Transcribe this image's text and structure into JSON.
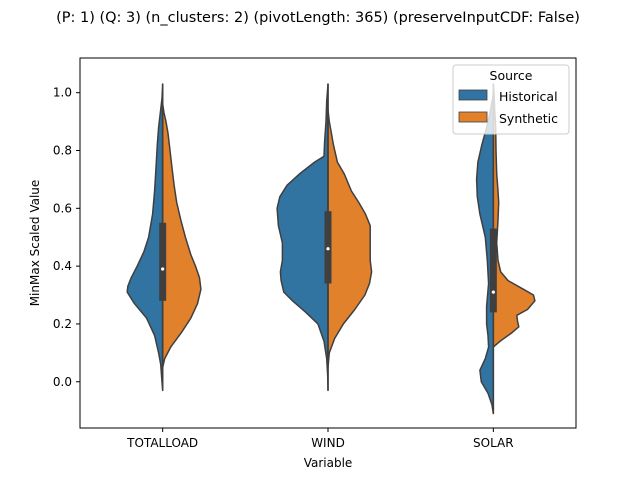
{
  "chart_data": {
    "type": "violin",
    "title": "(P: 1) (Q: 3) (n_clusters: 2) (pivotLength: 365) (preserveInputCDF: False)",
    "xlabel": "Variable",
    "ylabel": "MinMax Scaled Value",
    "categories": [
      "TOTALLOAD",
      "WIND",
      "SOLAR"
    ],
    "ylim": [
      -0.16,
      1.12
    ],
    "yticks": [
      "0.0",
      "0.2",
      "0.4",
      "0.6",
      "0.8",
      "1.0"
    ],
    "grid": false,
    "legend": {
      "title": "Source",
      "position": "top-right"
    },
    "split": true,
    "series": [
      {
        "name": "Historical",
        "color": "#3274a1",
        "side": "left",
        "violins": [
          {
            "category": "TOTALLOAD",
            "profile": [
              [
                -0.03,
                0
              ],
              [
                0.0,
                0.01
              ],
              [
                0.06,
                0.03
              ],
              [
                0.1,
                0.06
              ],
              [
                0.16,
                0.12
              ],
              [
                0.22,
                0.24
              ],
              [
                0.27,
                0.42
              ],
              [
                0.31,
                0.53
              ],
              [
                0.33,
                0.52
              ],
              [
                0.36,
                0.47
              ],
              [
                0.4,
                0.38
              ],
              [
                0.45,
                0.28
              ],
              [
                0.5,
                0.21
              ],
              [
                0.58,
                0.15
              ],
              [
                0.66,
                0.12
              ],
              [
                0.74,
                0.1
              ],
              [
                0.82,
                0.08
              ],
              [
                0.88,
                0.06
              ],
              [
                0.93,
                0.035
              ],
              [
                0.98,
                0.01
              ],
              [
                1.03,
                0
              ]
            ]
          },
          {
            "category": "WIND",
            "profile": [
              [
                -0.03,
                0
              ],
              [
                0.02,
                0.005
              ],
              [
                0.08,
                0.02
              ],
              [
                0.14,
                0.06
              ],
              [
                0.2,
                0.15
              ],
              [
                0.24,
                0.33
              ],
              [
                0.28,
                0.53
              ],
              [
                0.31,
                0.66
              ],
              [
                0.35,
                0.7
              ],
              [
                0.38,
                0.71
              ],
              [
                0.42,
                0.68
              ],
              [
                0.48,
                0.68
              ],
              [
                0.54,
                0.74
              ],
              [
                0.6,
                0.76
              ],
              [
                0.64,
                0.72
              ],
              [
                0.68,
                0.61
              ],
              [
                0.72,
                0.42
              ],
              [
                0.76,
                0.2
              ],
              [
                0.78,
                0.06
              ],
              [
                0.83,
                0.05
              ],
              [
                0.9,
                0.03
              ],
              [
                0.97,
                0.02
              ],
              [
                1.03,
                0
              ]
            ]
          },
          {
            "category": "SOLAR",
            "profile": [
              [
                -0.11,
                0
              ],
              [
                -0.08,
                0.02
              ],
              [
                -0.04,
                0.08
              ],
              [
                0.0,
                0.18
              ],
              [
                0.04,
                0.2
              ],
              [
                0.08,
                0.12
              ],
              [
                0.12,
                0.07
              ],
              [
                0.16,
                0.08
              ],
              [
                0.2,
                0.1
              ],
              [
                0.26,
                0.1
              ],
              [
                0.34,
                0.07
              ],
              [
                0.42,
                0.09
              ],
              [
                0.5,
                0.12
              ],
              [
                0.58,
                0.2
              ],
              [
                0.64,
                0.24
              ],
              [
                0.7,
                0.25
              ],
              [
                0.76,
                0.23
              ],
              [
                0.82,
                0.17
              ],
              [
                0.88,
                0.1
              ],
              [
                0.93,
                0.05
              ],
              [
                0.98,
                0.01
              ],
              [
                1.0,
                0
              ]
            ]
          }
        ]
      },
      {
        "name": "Synthetic",
        "color": "#e1812c",
        "side": "right",
        "violins": [
          {
            "category": "TOTALLOAD",
            "profile": [
              [
                0.05,
                0
              ],
              [
                0.08,
                0.03
              ],
              [
                0.12,
                0.12
              ],
              [
                0.17,
                0.28
              ],
              [
                0.22,
                0.42
              ],
              [
                0.27,
                0.52
              ],
              [
                0.32,
                0.57
              ],
              [
                0.36,
                0.55
              ],
              [
                0.4,
                0.49
              ],
              [
                0.44,
                0.42
              ],
              [
                0.5,
                0.34
              ],
              [
                0.56,
                0.27
              ],
              [
                0.62,
                0.21
              ],
              [
                0.68,
                0.17
              ],
              [
                0.74,
                0.14
              ],
              [
                0.8,
                0.11
              ],
              [
                0.86,
                0.08
              ],
              [
                0.9,
                0.05
              ],
              [
                0.93,
                0.02
              ],
              [
                0.96,
                0
              ]
            ]
          },
          {
            "category": "WIND",
            "profile": [
              [
                0.05,
                0
              ],
              [
                0.1,
                0.02
              ],
              [
                0.15,
                0.1
              ],
              [
                0.2,
                0.23
              ],
              [
                0.25,
                0.4
              ],
              [
                0.3,
                0.55
              ],
              [
                0.34,
                0.62
              ],
              [
                0.38,
                0.65
              ],
              [
                0.42,
                0.63
              ],
              [
                0.48,
                0.63
              ],
              [
                0.54,
                0.63
              ],
              [
                0.58,
                0.56
              ],
              [
                0.62,
                0.46
              ],
              [
                0.66,
                0.35
              ],
              [
                0.72,
                0.24
              ],
              [
                0.76,
                0.14
              ],
              [
                0.82,
                0.08
              ],
              [
                0.86,
                0.05
              ],
              [
                0.9,
                0.02
              ],
              [
                0.94,
                0
              ]
            ]
          },
          {
            "category": "SOLAR",
            "profile": [
              [
                0.12,
                0
              ],
              [
                0.14,
                0.1
              ],
              [
                0.17,
                0.28
              ],
              [
                0.19,
                0.38
              ],
              [
                0.21,
                0.36
              ],
              [
                0.23,
                0.35
              ],
              [
                0.25,
                0.51
              ],
              [
                0.28,
                0.62
              ],
              [
                0.3,
                0.6
              ],
              [
                0.32,
                0.45
              ],
              [
                0.35,
                0.22
              ],
              [
                0.38,
                0.11
              ],
              [
                0.42,
                0.07
              ],
              [
                0.48,
                0.05
              ],
              [
                0.56,
                0.07
              ],
              [
                0.62,
                0.08
              ],
              [
                0.66,
                0.07
              ],
              [
                0.72,
                0.05
              ],
              [
                0.8,
                0.04
              ],
              [
                0.88,
                0.035
              ],
              [
                0.94,
                0.02
              ],
              [
                1.0,
                0.01
              ],
              [
                1.03,
                0
              ]
            ]
          }
        ]
      }
    ],
    "boxes": [
      {
        "category": "TOTALLOAD",
        "q1": 0.28,
        "median": 0.39,
        "q3": 0.55,
        "whisker_low": -0.03,
        "whisker_high": 1.03
      },
      {
        "category": "WIND",
        "q1": 0.34,
        "median": 0.46,
        "q3": 0.59,
        "whisker_low": -0.03,
        "whisker_high": 1.03
      },
      {
        "category": "SOLAR",
        "q1": 0.24,
        "median": 0.31,
        "q3": 0.53,
        "whisker_low": -0.11,
        "whisker_high": 1.03
      }
    ]
  }
}
